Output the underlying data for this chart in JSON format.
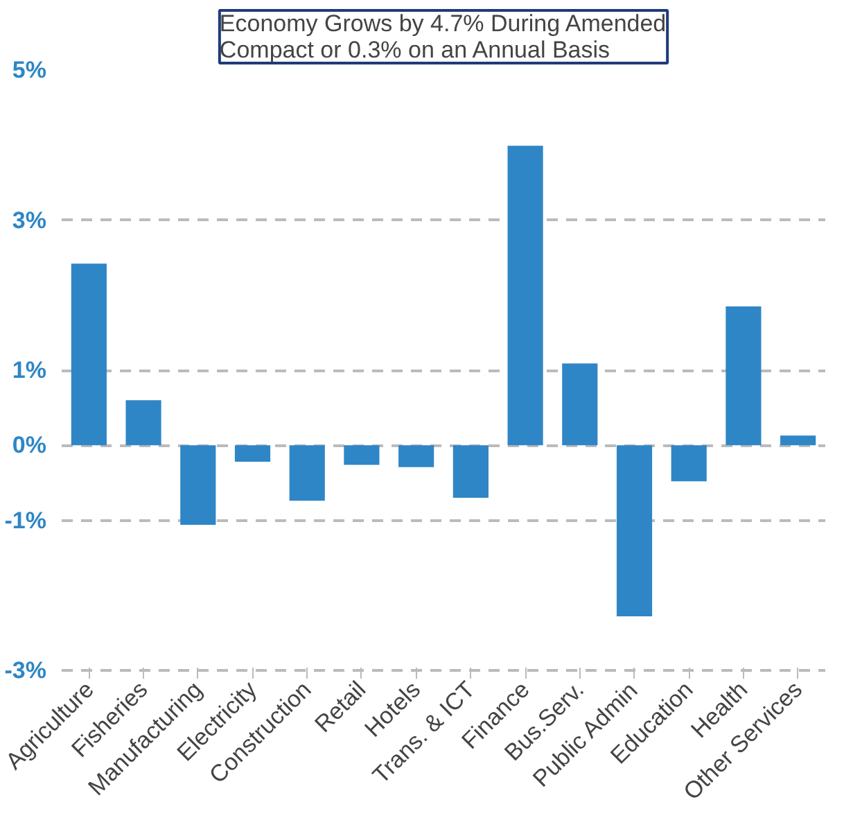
{
  "chart_data": {
    "type": "bar",
    "title": "Economy Grows by 4.7% During Amended\nCompact or 0.3% on an Annual Basis",
    "categories": [
      "Agriculture",
      "Fisheries",
      "Manufacturing",
      "Electricity",
      "Construction",
      "Retail",
      "Hotels",
      "Trans. & ICT",
      "Finance",
      "Bus.Serv.",
      "Public Admin",
      "Education",
      "Health",
      "Other Services"
    ],
    "values": [
      2.42,
      0.6,
      -1.06,
      -0.22,
      -0.74,
      -0.26,
      -0.29,
      -0.7,
      3.99,
      1.09,
      -2.28,
      -0.48,
      1.85,
      0.13
    ],
    "color": "#2e86c6",
    "ylim": [
      -3,
      5
    ],
    "yticks": [
      {
        "value": 5,
        "label": "5%"
      },
      {
        "value": 3,
        "label": "3%"
      },
      {
        "value": 1,
        "label": "1%"
      },
      {
        "value": 0,
        "label": "0%"
      },
      {
        "value": -1,
        "label": "-1%"
      },
      {
        "value": -3,
        "label": "-3%"
      }
    ],
    "grid": "y"
  }
}
